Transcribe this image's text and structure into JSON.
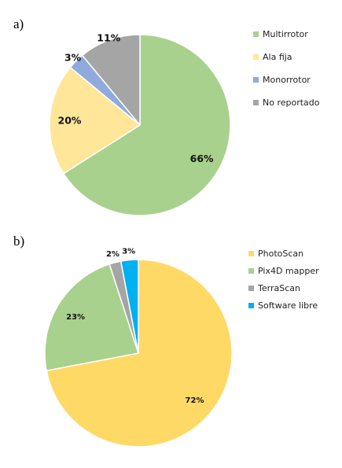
{
  "chart_data": [
    {
      "type": "pie",
      "panel_label": "a)",
      "categories": [
        "Multirrotor",
        "Ala fija",
        "Monorrotor",
        "No reportado"
      ],
      "values": [
        66,
        20,
        3,
        11
      ],
      "labels": [
        "66%",
        "20%",
        "3%",
        "11%"
      ],
      "colors": [
        "#A9D18E",
        "#FFE699",
        "#8FAADC",
        "#A5A5A5"
      ],
      "legend": [
        "Multirrotor",
        "Ala fija",
        "Monorrotor",
        "No reportado"
      ],
      "legend_position": "right",
      "start_angle": "top, clockwise"
    },
    {
      "type": "pie",
      "panel_label": "b)",
      "categories": [
        "PhotoScan",
        "Pix4D mapper",
        "TerraScan",
        "Software libre"
      ],
      "values": [
        72,
        23,
        2,
        3
      ],
      "labels": [
        "72%",
        "23%",
        "2%",
        "3%"
      ],
      "colors": [
        "#FFD966",
        "#A9D18E",
        "#A5A5A5",
        "#00B0F0"
      ],
      "legend": [
        "PhotoScan",
        "Pix4D mapper",
        "TerraScan",
        "Software libre"
      ],
      "legend_position": "right",
      "start_angle": "top, clockwise"
    }
  ]
}
